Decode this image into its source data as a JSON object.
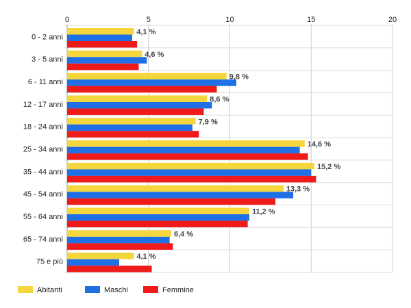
{
  "chart_data": {
    "type": "bar",
    "orientation": "horizontal",
    "categories": [
      "0 - 2 anni",
      "3 - 5 anni",
      "6 - 11 anni",
      "12 - 17 anni",
      "18 - 24 anni",
      "25 - 34 anni",
      "35 - 44 anni",
      "45 - 54 anni",
      "55 - 64 anni",
      "65 - 74 anni",
      "75 e più"
    ],
    "series": [
      {
        "name": "Abitanti",
        "color": "#f5d63d",
        "values": [
          4.1,
          4.6,
          9.8,
          8.6,
          7.9,
          14.6,
          15.2,
          13.3,
          11.2,
          6.4,
          4.1
        ]
      },
      {
        "name": "Maschi",
        "color": "#1f6fe5",
        "values": [
          4.0,
          4.9,
          10.4,
          8.9,
          7.7,
          14.3,
          15.0,
          13.9,
          11.2,
          6.3,
          3.2
        ]
      },
      {
        "name": "Femmine",
        "color": "#ef1a1a",
        "values": [
          4.3,
          4.4,
          9.2,
          8.4,
          8.1,
          14.8,
          15.3,
          12.8,
          11.1,
          6.5,
          5.2
        ]
      }
    ],
    "data_labels": [
      "4,1 %",
      "4,6 %",
      "9,8 %",
      "8,6 %",
      "7,9 %",
      "14,6 %",
      "15,2 %",
      "13,3 %",
      "11,2 %",
      "6,4 %",
      "4,1 %"
    ],
    "xlim": [
      0,
      20
    ],
    "xticks": [
      0,
      5,
      10,
      15,
      20
    ],
    "xtick_labels": [
      "0",
      "5",
      "10",
      "15",
      "20"
    ],
    "grid": true,
    "legend_position": "bottom-left",
    "title": "",
    "xlabel": "",
    "ylabel": ""
  }
}
